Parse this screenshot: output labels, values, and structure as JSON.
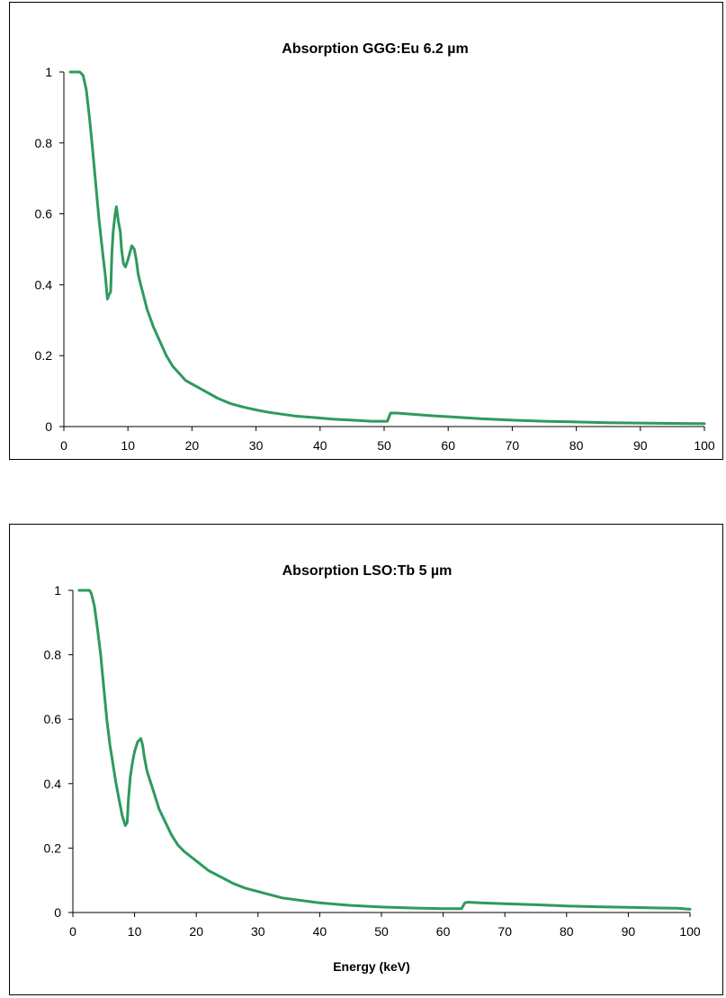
{
  "chart_data": [
    {
      "type": "line",
      "title": "Absorption GGG:Eu 6.2 µm",
      "xlabel": "",
      "ylabel": "",
      "xlim": [
        0,
        100
      ],
      "ylim": [
        0,
        1
      ],
      "x_ticks": [
        "0",
        "10",
        "20",
        "30",
        "40",
        "50",
        "60",
        "70",
        "80",
        "90",
        "100"
      ],
      "y_ticks": [
        "0",
        "0.2",
        "0.4",
        "0.6",
        "0.8",
        "1"
      ],
      "grid": false,
      "legend": "none",
      "line_color": "#2e9a5e",
      "series": [
        {
          "x": [
            1,
            2.5,
            3,
            3.5,
            4,
            4.5,
            5,
            5.5,
            6,
            6.5,
            6.8,
            7,
            7.3,
            7.5,
            7.7,
            8,
            8.2,
            8.5,
            8.8,
            9,
            9.3,
            9.6,
            10,
            10.3,
            10.6,
            11,
            11.3,
            11.6,
            12,
            13,
            14,
            15,
            16,
            17,
            18,
            19,
            20,
            22,
            24,
            26,
            28,
            30,
            32,
            34,
            36,
            38,
            40,
            42,
            44,
            46,
            48,
            50.5,
            51,
            52,
            55,
            58,
            60,
            65,
            70,
            75,
            80,
            85,
            90,
            95,
            100
          ],
          "y": [
            1,
            1,
            0.99,
            0.95,
            0.87,
            0.78,
            0.68,
            0.58,
            0.5,
            0.42,
            0.36,
            0.37,
            0.38,
            0.49,
            0.55,
            0.6,
            0.62,
            0.58,
            0.55,
            0.5,
            0.46,
            0.45,
            0.47,
            0.49,
            0.51,
            0.5,
            0.47,
            0.43,
            0.4,
            0.33,
            0.28,
            0.24,
            0.2,
            0.17,
            0.15,
            0.13,
            0.12,
            0.1,
            0.08,
            0.065,
            0.055,
            0.047,
            0.04,
            0.035,
            0.03,
            0.027,
            0.024,
            0.021,
            0.019,
            0.017,
            0.015,
            0.015,
            0.038,
            0.038,
            0.034,
            0.03,
            0.028,
            0.022,
            0.018,
            0.015,
            0.013,
            0.011,
            0.01,
            0.009,
            0.008
          ]
        }
      ]
    },
    {
      "type": "line",
      "title": "Absorption LSO:Tb 5 µm",
      "xlabel": "Energy (keV)",
      "ylabel": "",
      "xlim": [
        0,
        100
      ],
      "ylim": [
        0,
        1
      ],
      "x_ticks": [
        "0",
        "10",
        "20",
        "30",
        "40",
        "50",
        "60",
        "70",
        "80",
        "90",
        "100"
      ],
      "y_ticks": [
        "0",
        "0.2",
        "0.4",
        "0.6",
        "0.8",
        "1"
      ],
      "grid": false,
      "legend": "none",
      "line_color": "#2e9a5e",
      "series": [
        {
          "x": [
            1,
            2.7,
            3,
            3.5,
            4,
            4.5,
            5,
            5.5,
            6,
            6.5,
            7,
            7.5,
            8,
            8.5,
            8.8,
            9,
            9.3,
            9.6,
            10,
            10.5,
            11,
            11.3,
            11.6,
            12,
            13,
            14,
            15,
            16,
            17,
            18,
            20,
            22,
            24,
            26,
            28,
            30,
            32,
            34,
            36,
            38,
            40,
            45,
            50,
            55,
            60,
            63,
            63.5,
            64,
            66,
            70,
            75,
            80,
            85,
            90,
            95,
            98,
            100
          ],
          "y": [
            1,
            1,
            0.99,
            0.95,
            0.88,
            0.8,
            0.7,
            0.6,
            0.52,
            0.46,
            0.4,
            0.35,
            0.3,
            0.27,
            0.28,
            0.35,
            0.42,
            0.46,
            0.5,
            0.53,
            0.54,
            0.52,
            0.48,
            0.44,
            0.38,
            0.32,
            0.28,
            0.24,
            0.21,
            0.19,
            0.16,
            0.13,
            0.11,
            0.09,
            0.075,
            0.065,
            0.055,
            0.045,
            0.04,
            0.035,
            0.03,
            0.022,
            0.017,
            0.014,
            0.012,
            0.012,
            0.03,
            0.032,
            0.03,
            0.027,
            0.024,
            0.02,
            0.018,
            0.016,
            0.014,
            0.013,
            0.01
          ]
        }
      ]
    }
  ]
}
